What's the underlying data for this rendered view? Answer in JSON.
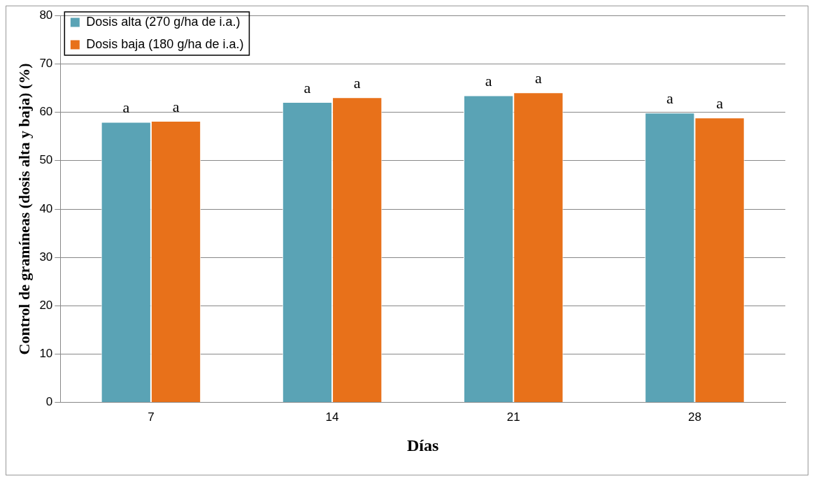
{
  "chart_data": {
    "type": "bar",
    "xlabel": "Días",
    "ylabel": "Control de gramíneas (dosis alta y baja) (%)",
    "categories": [
      "7",
      "14",
      "21",
      "28"
    ],
    "series": [
      {
        "name": "Dosis alta (270 g/ha de i.a.)",
        "color": "#5aa3b5",
        "values": [
          58.0,
          62.1,
          63.5,
          59.9
        ],
        "value_labels": [
          "a",
          "a",
          "a",
          "a"
        ]
      },
      {
        "name": "Dosis baja (180 g/ha de i.a.)",
        "color": "#e8711a",
        "values": [
          58.2,
          63.1,
          64.1,
          58.9
        ],
        "value_labels": [
          "a",
          "a",
          "a",
          "a"
        ]
      }
    ],
    "ylim": [
      0,
      80
    ],
    "yticks": [
      0,
      10,
      20,
      30,
      40,
      50,
      60,
      70,
      80
    ],
    "grid": "y",
    "legend": "top left"
  }
}
